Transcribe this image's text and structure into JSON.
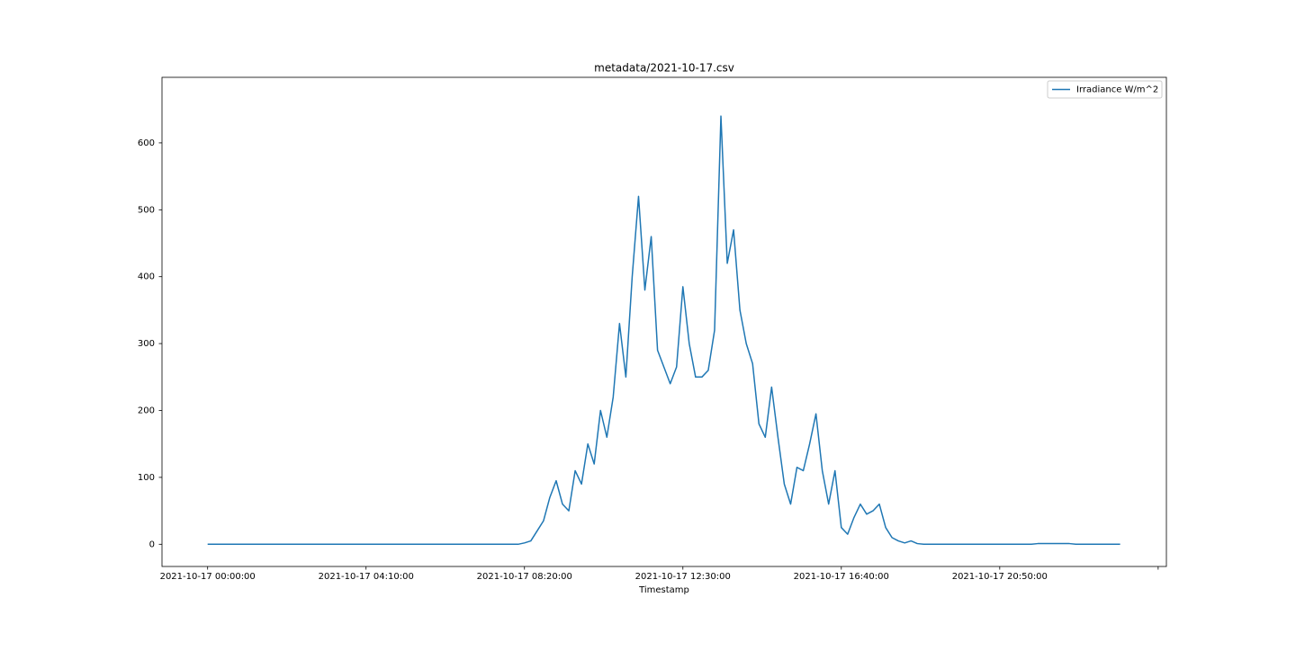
{
  "chart_data": {
    "type": "line",
    "title": "metadata/2021-10-17.csv",
    "x_label": "Timestamp",
    "x": [
      0,
      10,
      20,
      30,
      40,
      50,
      60,
      70,
      80,
      90,
      100,
      110,
      120,
      130,
      140,
      150,
      160,
      170,
      180,
      190,
      200,
      210,
      220,
      230,
      240,
      250,
      260,
      270,
      280,
      290,
      300,
      310,
      320,
      330,
      340,
      350,
      360,
      370,
      380,
      390,
      400,
      410,
      420,
      430,
      440,
      450,
      460,
      470,
      480,
      490,
      500,
      510,
      520,
      530,
      540,
      550,
      560,
      570,
      580,
      590,
      600,
      610,
      620,
      630,
      640,
      650,
      660,
      670,
      680,
      690,
      700,
      710,
      720,
      730,
      740,
      750,
      760,
      770,
      780,
      790,
      800,
      810,
      820,
      830,
      840,
      850,
      860,
      870,
      880,
      890,
      900,
      910,
      920,
      930,
      940,
      950,
      960,
      970,
      980,
      990,
      1000,
      1010,
      1020,
      1030,
      1040,
      1050,
      1060,
      1070,
      1080,
      1090,
      1100,
      1110,
      1120,
      1130,
      1140,
      1150,
      1160,
      1170,
      1180,
      1190,
      1200,
      1210,
      1220,
      1230,
      1240,
      1250,
      1260,
      1270,
      1280,
      1290,
      1300,
      1310,
      1320,
      1330,
      1340,
      1350,
      1360,
      1370,
      1380,
      1390,
      1400,
      1410,
      1420,
      1430,
      1440
    ],
    "series": [
      {
        "name": "Irradiance W/m^2",
        "color": "#1f77b4",
        "values": [
          0,
          0,
          0,
          0,
          0,
          0,
          0,
          0,
          0,
          0,
          0,
          0,
          0,
          0,
          0,
          0,
          0,
          0,
          0,
          0,
          0,
          0,
          0,
          0,
          0,
          0,
          0,
          0,
          0,
          0,
          0,
          0,
          0,
          0,
          0,
          0,
          0,
          0,
          0,
          0,
          0,
          0,
          0,
          0,
          0,
          0,
          0,
          0,
          0,
          0,
          2,
          5,
          20,
          35,
          70,
          95,
          60,
          50,
          110,
          90,
          150,
          120,
          200,
          160,
          220,
          330,
          250,
          400,
          520,
          380,
          460,
          290,
          265,
          240,
          265,
          385,
          300,
          250,
          250,
          260,
          320,
          640,
          420,
          470,
          350,
          300,
          270,
          180,
          160,
          235,
          160,
          90,
          60,
          115,
          110,
          150,
          195,
          110,
          60,
          110,
          25,
          15,
          40,
          60,
          45,
          50,
          60,
          25,
          10,
          5,
          2,
          5,
          1,
          0,
          0,
          0,
          0,
          0,
          0,
          0,
          0,
          0,
          0,
          0,
          0,
          0,
          0,
          0,
          0,
          0,
          0,
          1,
          1,
          1,
          1,
          1,
          1,
          0,
          0,
          0,
          0,
          0,
          0,
          0,
          0
        ]
      }
    ],
    "xlim": [
      -72,
      1513
    ],
    "xticks": [
      {
        "value": 0,
        "label": "2021-10-17 00:00:00"
      },
      {
        "value": 250,
        "label": "2021-10-17 04:10:00"
      },
      {
        "value": 500,
        "label": "2021-10-17 08:20:00"
      },
      {
        "value": 750,
        "label": "2021-10-17 12:30:00"
      },
      {
        "value": 1000,
        "label": "2021-10-17 16:40:00"
      },
      {
        "value": 1250,
        "label": "2021-10-17 20:50:00"
      },
      {
        "value": 1500,
        "label": null
      }
    ],
    "ylim": [
      -33.2,
      698
    ],
    "yticks": [
      0,
      100,
      200,
      300,
      400,
      500,
      600
    ],
    "legend": "upper right",
    "grid": false
  }
}
